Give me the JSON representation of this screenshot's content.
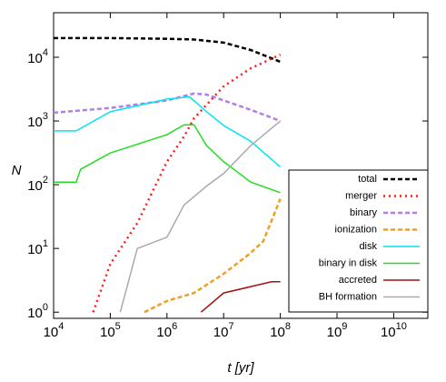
{
  "chart_data": {
    "type": "line",
    "x_label": "t [yr]",
    "y_label": "N",
    "xlog": true,
    "ylog": true,
    "xlim": [
      10000,
      40000000000
    ],
    "ylim": [
      0.8,
      50000
    ],
    "xticks": [
      {
        "value": 10000,
        "label": "10^4"
      },
      {
        "value": 100000,
        "label": "10^5"
      },
      {
        "value": 1000000,
        "label": "10^6"
      },
      {
        "value": 10000000,
        "label": "10^7"
      },
      {
        "value": 100000000,
        "label": "10^8"
      },
      {
        "value": 1000000000,
        "label": "10^9"
      },
      {
        "value": 10000000000,
        "label": "10^10"
      }
    ],
    "yticks": [
      {
        "value": 1,
        "label": "10^0"
      },
      {
        "value": 10,
        "label": "10^1"
      },
      {
        "value": 100,
        "label": "10^2"
      },
      {
        "value": 1000,
        "label": "10^3"
      },
      {
        "value": 10000,
        "label": "10^4"
      }
    ],
    "legend": "lower right",
    "series": [
      {
        "name": "total",
        "color": "#000000",
        "dash": "dashed",
        "x": [
          10000,
          100000,
          1000000,
          3000000,
          10000000,
          30000000,
          100000000
        ],
        "values": [
          20000,
          20000,
          19500,
          19000,
          17000,
          13000,
          8500
        ]
      },
      {
        "name": "merger",
        "color": "#ff1a1a",
        "dash": "dotted",
        "x": [
          50000,
          100000,
          300000,
          1000000,
          2000000,
          3000000,
          10000000,
          30000000,
          100000000
        ],
        "values": [
          1,
          5.7,
          25,
          230,
          570,
          1100,
          3500,
          6700,
          11000
        ]
      },
      {
        "name": "binary",
        "color": "#b07fe8",
        "dash": "dashed",
        "x": [
          10000,
          100000,
          1000000,
          3000000,
          5000000,
          10000000,
          30000000,
          100000000
        ],
        "values": [
          1350,
          1600,
          2100,
          2700,
          2600,
          2100,
          1500,
          1000
        ]
      },
      {
        "name": "ionization",
        "color": "#f0a020",
        "dash": "dashed",
        "x": [
          400000,
          1000000,
          3000000,
          10000000,
          30000000,
          50000000,
          100000000
        ],
        "values": [
          1,
          1.5,
          2,
          4,
          8.5,
          13,
          60
        ]
      },
      {
        "name": "disk",
        "color": "#00e5ee",
        "dash": "solid",
        "x": [
          10000,
          25000,
          100000,
          1000000,
          2500000,
          5000000,
          10000000,
          30000000,
          100000000
        ],
        "values": [
          700,
          700,
          1400,
          2200,
          2400,
          1400,
          850,
          480,
          190
        ]
      },
      {
        "name": "binary in disk",
        "color": "#22dd22",
        "dash": "solid",
        "x": [
          10000,
          25000,
          30000,
          100000,
          1000000,
          2000000,
          3000000,
          5000000,
          10000000,
          30000000,
          100000000
        ],
        "values": [
          110,
          110,
          175,
          315,
          610,
          870,
          870,
          410,
          230,
          110,
          75
        ]
      },
      {
        "name": "accreted",
        "color": "#a01010",
        "dash": "solid",
        "x": [
          4000000,
          10000000,
          70000000,
          100000000
        ],
        "values": [
          1,
          2,
          3,
          3
        ]
      },
      {
        "name": "BH formation",
        "color": "#aaaaaa",
        "dash": "solid",
        "x": [
          150000,
          300000,
          1000000,
          2000000,
          5000000,
          10000000,
          30000000,
          100000000
        ],
        "values": [
          1,
          10,
          15,
          48,
          95,
          150,
          410,
          1000
        ]
      }
    ]
  }
}
